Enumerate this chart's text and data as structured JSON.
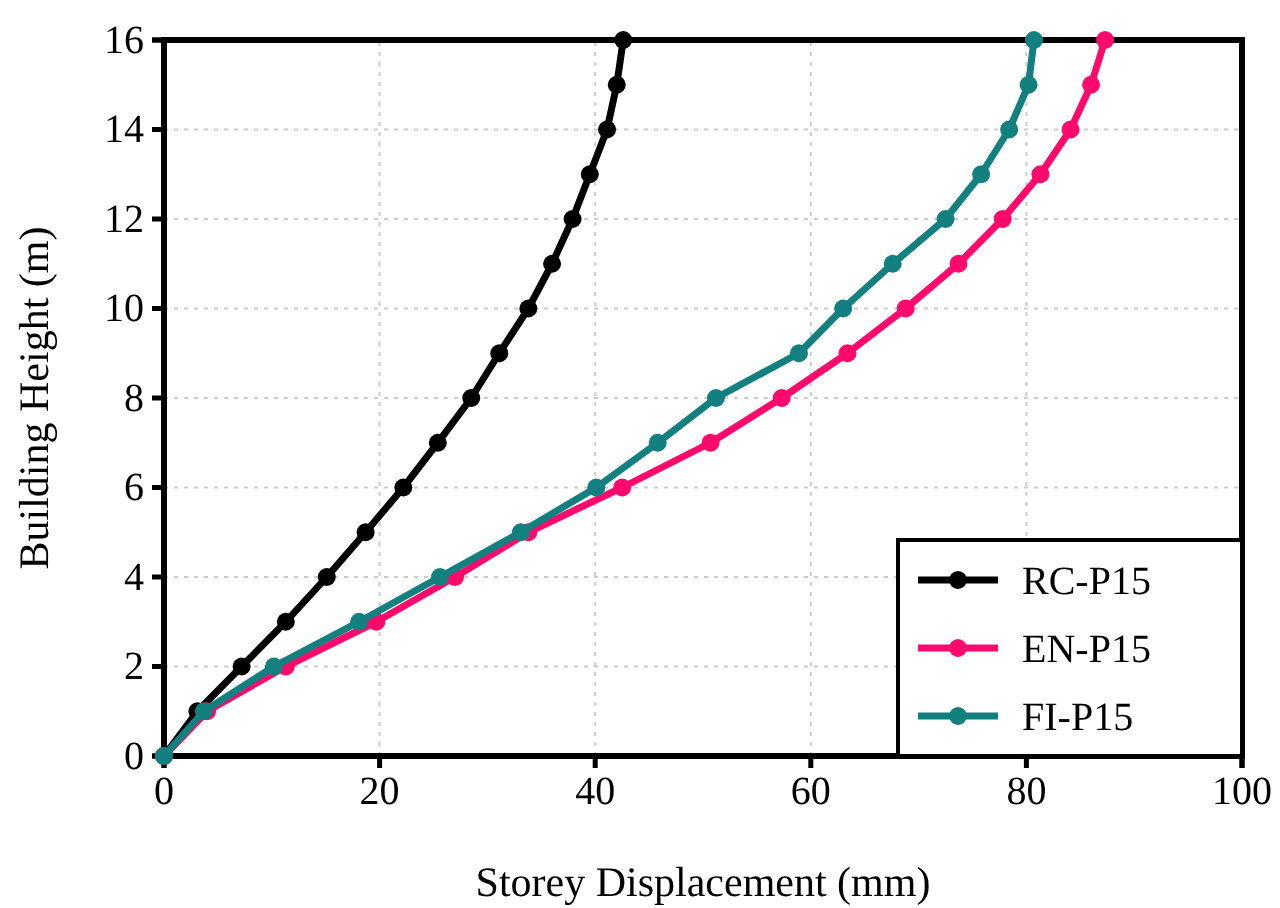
{
  "chart_data": {
    "type": "line",
    "xlabel": "Storey Displacement (mm)",
    "ylabel": "Building Height (m)",
    "xlim": [
      0,
      100
    ],
    "xticks": [
      0,
      20,
      40,
      60,
      80,
      100
    ],
    "ylim": [
      0,
      16
    ],
    "yticks": [
      0,
      2,
      4,
      6,
      8,
      10,
      12,
      14,
      16
    ],
    "grid": true,
    "legend": "bottom right",
    "marker": "circle",
    "line_style": "solid",
    "series": [
      {
        "name": "RC-P15",
        "color": "#000000",
        "x": [
          0,
          3.1,
          7.2,
          11.3,
          15.1,
          18.7,
          22.2,
          25.4,
          28.5,
          31.1,
          33.8,
          36.0,
          37.9,
          39.5,
          41.1,
          42.0,
          42.6
        ],
        "values": [
          0,
          1,
          2,
          3,
          4,
          5,
          6,
          7,
          8,
          9,
          10,
          11,
          12,
          13,
          14,
          15,
          16
        ]
      },
      {
        "name": "EN-P15",
        "color": "#ff0a6c",
        "x": [
          0,
          4.0,
          11.3,
          19.7,
          27.0,
          33.8,
          42.5,
          50.7,
          57.3,
          63.4,
          68.8,
          73.7,
          77.8,
          81.3,
          84.1,
          86.0,
          87.3
        ],
        "values": [
          0,
          1,
          2,
          3,
          4,
          5,
          6,
          7,
          8,
          9,
          10,
          11,
          12,
          13,
          14,
          15,
          16
        ]
      },
      {
        "name": "FI-P15",
        "color": "#138080",
        "x": [
          0,
          3.7,
          10.2,
          18.1,
          25.6,
          33.1,
          40.1,
          45.8,
          51.2,
          58.9,
          63.0,
          67.6,
          72.5,
          75.8,
          78.4,
          80.2,
          80.7
        ],
        "values": [
          0,
          1,
          2,
          3,
          4,
          5,
          6,
          7,
          8,
          9,
          10,
          11,
          12,
          13,
          14,
          15,
          16
        ]
      }
    ]
  }
}
